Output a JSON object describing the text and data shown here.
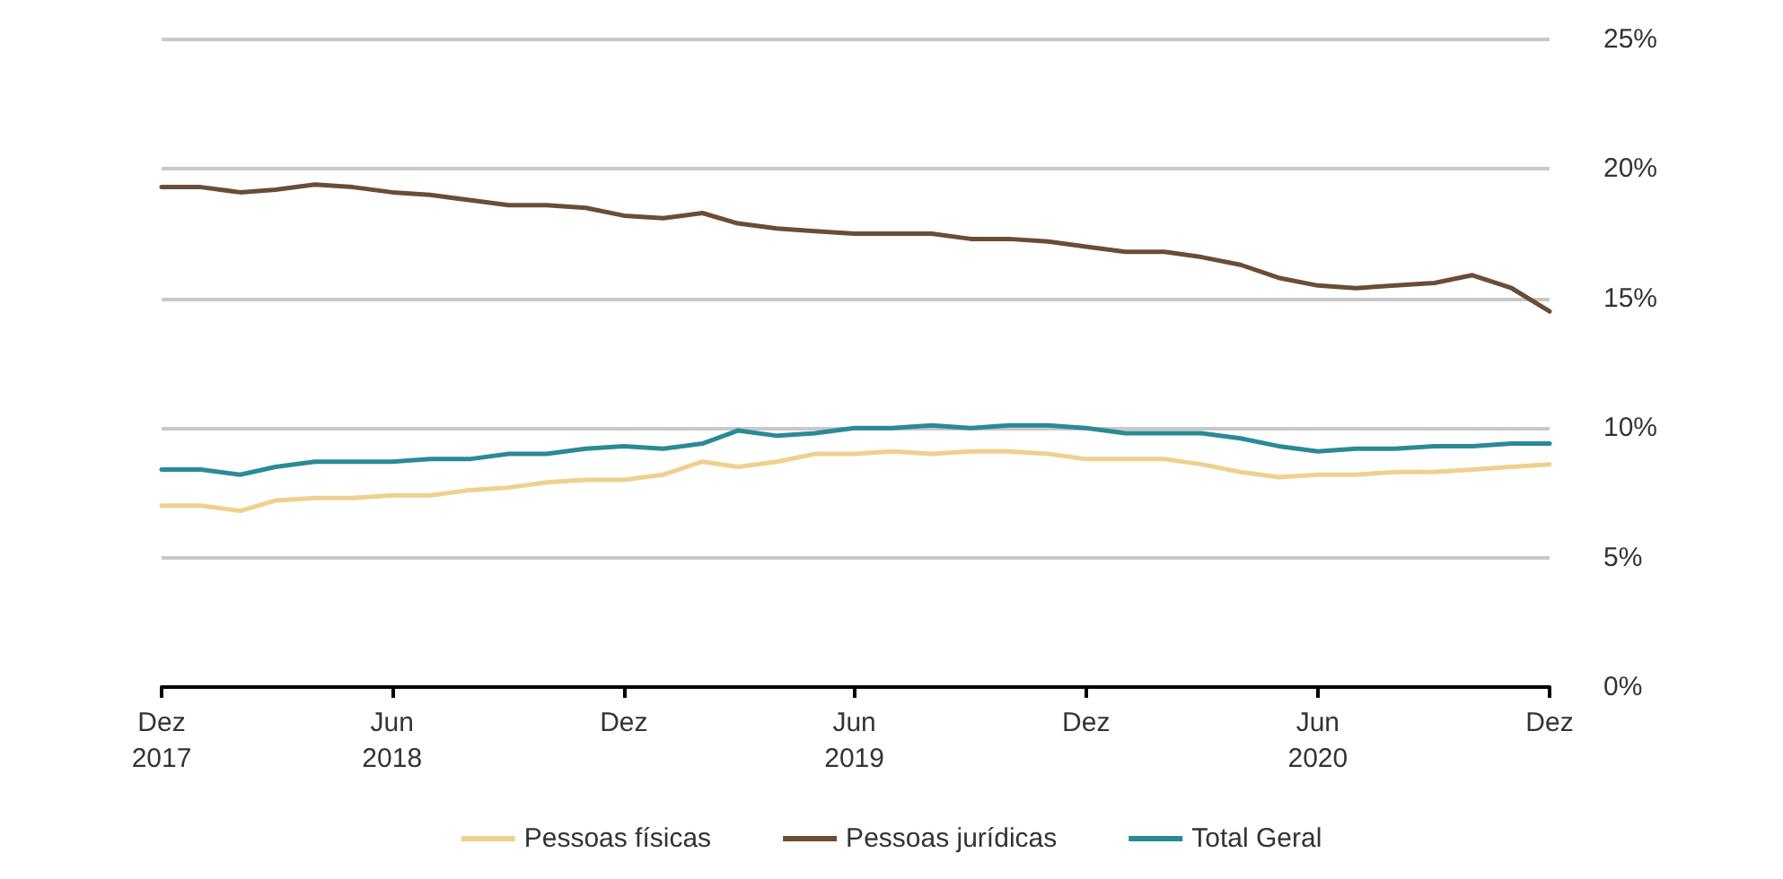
{
  "chart_data": {
    "type": "line",
    "x": [
      "2017-12",
      "2018-01",
      "2018-02",
      "2018-03",
      "2018-04",
      "2018-05",
      "2018-06",
      "2018-07",
      "2018-08",
      "2018-09",
      "2018-10",
      "2018-11",
      "2018-12",
      "2019-01",
      "2019-02",
      "2019-03",
      "2019-04",
      "2019-05",
      "2019-06",
      "2019-07",
      "2019-08",
      "2019-09",
      "2019-10",
      "2019-11",
      "2019-12",
      "2020-01",
      "2020-02",
      "2020-03",
      "2020-04",
      "2020-05",
      "2020-06",
      "2020-07",
      "2020-08",
      "2020-09",
      "2020-10",
      "2020-11",
      "2020-12"
    ],
    "series": [
      {
        "name": "Pessoas físicas",
        "color": "#f0d08f",
        "values": [
          7.0,
          7.0,
          6.8,
          7.2,
          7.3,
          7.3,
          7.4,
          7.4,
          7.6,
          7.7,
          7.9,
          8.0,
          8.0,
          8.2,
          8.7,
          8.5,
          8.7,
          9.0,
          9.0,
          9.1,
          9.0,
          9.1,
          9.1,
          9.0,
          8.8,
          8.8,
          8.8,
          8.6,
          8.3,
          8.1,
          8.2,
          8.2,
          8.3,
          8.3,
          8.4,
          8.5,
          8.6
        ]
      },
      {
        "name": "Pessoas jurídicas",
        "color": "#6b4c35",
        "values": [
          19.3,
          19.3,
          19.1,
          19.2,
          19.4,
          19.3,
          19.1,
          19.0,
          18.8,
          18.6,
          18.6,
          18.5,
          18.2,
          18.1,
          18.3,
          17.9,
          17.7,
          17.6,
          17.5,
          17.5,
          17.5,
          17.3,
          17.3,
          17.2,
          17.0,
          16.8,
          16.8,
          16.6,
          16.3,
          15.8,
          15.5,
          15.4,
          15.5,
          15.6,
          15.9,
          15.4,
          14.5
        ]
      },
      {
        "name": "Total Geral",
        "color": "#2a8a96",
        "values": [
          8.4,
          8.4,
          8.2,
          8.5,
          8.7,
          8.7,
          8.7,
          8.8,
          8.8,
          9.0,
          9.0,
          9.2,
          9.3,
          9.2,
          9.4,
          9.9,
          9.7,
          9.8,
          10.0,
          10.0,
          10.1,
          10.0,
          10.1,
          10.1,
          10.0,
          9.8,
          9.8,
          9.8,
          9.6,
          9.3,
          9.1,
          9.2,
          9.2,
          9.3,
          9.3,
          9.4,
          9.4
        ]
      }
    ],
    "xlim": [
      "2017-12",
      "2020-12"
    ],
    "xticks": [
      {
        "value": "2017-12",
        "label": "Dez\n2017"
      },
      {
        "value": "2018-06",
        "label": "Jun\n2018"
      },
      {
        "value": "2018-12",
        "label": "Dez"
      },
      {
        "value": "2019-06",
        "label": "Jun\n2019"
      },
      {
        "value": "2019-12",
        "label": "Dez"
      },
      {
        "value": "2020-06",
        "label": "Jun\n2020"
      },
      {
        "value": "2020-12",
        "label": "Dez"
      }
    ],
    "ylim": [
      0,
      25
    ],
    "yticks": [
      {
        "value": 0,
        "label": "0%"
      },
      {
        "value": 5,
        "label": "5%"
      },
      {
        "value": 10,
        "label": "10%"
      },
      {
        "value": 15,
        "label": "15%"
      },
      {
        "value": 20,
        "label": "20%"
      },
      {
        "value": 25,
        "label": "25%"
      }
    ],
    "grid": "y",
    "legend": "bottom",
    "marker": "none",
    "line_style": "solid"
  }
}
